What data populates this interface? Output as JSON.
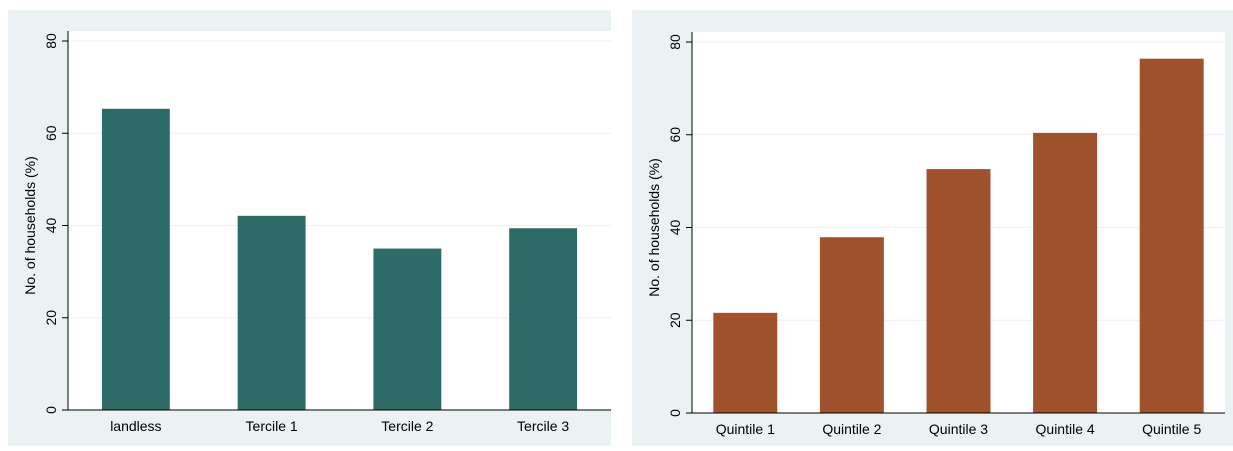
{
  "chart_data": [
    {
      "type": "bar",
      "title": "",
      "xlabel": "",
      "ylabel": "No. of households (%)",
      "ylim": [
        0,
        80
      ],
      "yticks": [
        0,
        20,
        40,
        60,
        80
      ],
      "grid": true,
      "categories": [
        "landless",
        "Tercile 1",
        "Tercile 2",
        "Tercile 3"
      ],
      "values": [
        65.3,
        42.1,
        35.0,
        39.4
      ],
      "color": "#2e6b66"
    },
    {
      "type": "bar",
      "title": "",
      "xlabel": "",
      "ylabel": "No. of households (%)",
      "ylim": [
        0,
        80
      ],
      "yticks": [
        0,
        20,
        40,
        60,
        80
      ],
      "grid": true,
      "categories": [
        "Quintile 1",
        "Quintile 2",
        "Quintile 3",
        "Quintile 4",
        "Quintile 5"
      ],
      "values": [
        21.6,
        37.9,
        52.6,
        60.4,
        76.4
      ],
      "color": "#a0522d"
    }
  ]
}
